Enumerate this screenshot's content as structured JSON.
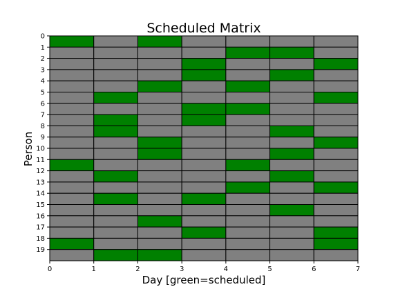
{
  "chart_data": {
    "type": "heatmap",
    "title": "Scheduled Matrix",
    "xlabel": "Day [green=scheduled]",
    "ylabel": "Person",
    "x_ticks": [
      "0",
      "1",
      "2",
      "3",
      "4",
      "5",
      "6",
      "7"
    ],
    "y_ticks": [
      "0",
      "1",
      "2",
      "3",
      "4",
      "5",
      "6",
      "7",
      "8",
      "9",
      "10",
      "11",
      "12",
      "13",
      "14",
      "15",
      "16",
      "17",
      "18",
      "19"
    ],
    "xlim": [
      0,
      7
    ],
    "ylim": [
      20,
      0
    ],
    "grid": true,
    "colors": {
      "scheduled": "#008000",
      "unscheduled": "#808080",
      "grid": "#000000"
    },
    "matrix": [
      [
        1,
        0,
        1,
        0,
        0,
        0,
        0
      ],
      [
        0,
        0,
        0,
        0,
        1,
        1,
        0
      ],
      [
        0,
        0,
        0,
        1,
        0,
        0,
        1
      ],
      [
        0,
        0,
        0,
        1,
        0,
        1,
        0
      ],
      [
        0,
        0,
        1,
        0,
        1,
        0,
        0
      ],
      [
        0,
        1,
        0,
        0,
        0,
        0,
        1
      ],
      [
        0,
        0,
        0,
        1,
        1,
        0,
        0
      ],
      [
        0,
        1,
        0,
        1,
        0,
        0,
        0
      ],
      [
        0,
        1,
        0,
        0,
        0,
        1,
        0
      ],
      [
        0,
        0,
        1,
        0,
        0,
        0,
        1
      ],
      [
        0,
        0,
        1,
        0,
        0,
        1,
        0
      ],
      [
        1,
        0,
        0,
        0,
        1,
        0,
        0
      ],
      [
        0,
        1,
        0,
        0,
        0,
        1,
        0
      ],
      [
        0,
        0,
        0,
        0,
        1,
        0,
        1
      ],
      [
        0,
        1,
        0,
        1,
        0,
        0,
        0
      ],
      [
        0,
        0,
        0,
        0,
        0,
        1,
        0
      ],
      [
        0,
        0,
        1,
        0,
        0,
        0,
        0
      ],
      [
        0,
        0,
        0,
        1,
        0,
        0,
        1
      ],
      [
        1,
        0,
        0,
        0,
        0,
        0,
        1
      ],
      [
        0,
        1,
        1,
        0,
        0,
        0,
        0
      ]
    ]
  }
}
